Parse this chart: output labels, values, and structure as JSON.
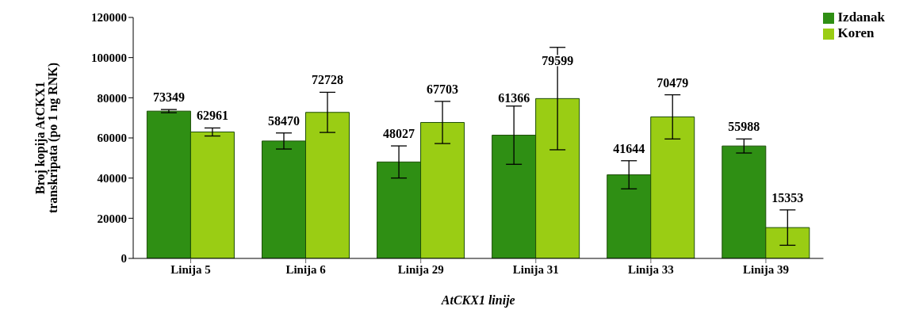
{
  "chart_data": {
    "type": "bar",
    "xlabel": "AtCKX1 linije",
    "ylabel": "Broj kopija AtCKX1 transkripata (po 1 ng RNK)",
    "categories": [
      "Linija 5",
      "Linija 6",
      "Linija 29",
      "Linija 31",
      "Linija 33",
      "Linija 39"
    ],
    "series": [
      {
        "name": "Izdanak",
        "color": "#2f8f14",
        "values": [
          73349,
          58470,
          48027,
          61366,
          41644,
          55988
        ],
        "errors": [
          800,
          4000,
          8000,
          14500,
          7000,
          3500
        ]
      },
      {
        "name": "Koren",
        "color": "#9acd14",
        "values": [
          62961,
          72728,
          67703,
          79599,
          70479,
          15353
        ],
        "errors": [
          2000,
          10000,
          10500,
          25500,
          11000,
          8800
        ]
      }
    ],
    "ylim": [
      0,
      120000
    ],
    "yticks": [
      0,
      20000,
      40000,
      60000,
      80000,
      100000,
      120000
    ],
    "grid": false,
    "legend": "top right",
    "data_labels": true
  }
}
